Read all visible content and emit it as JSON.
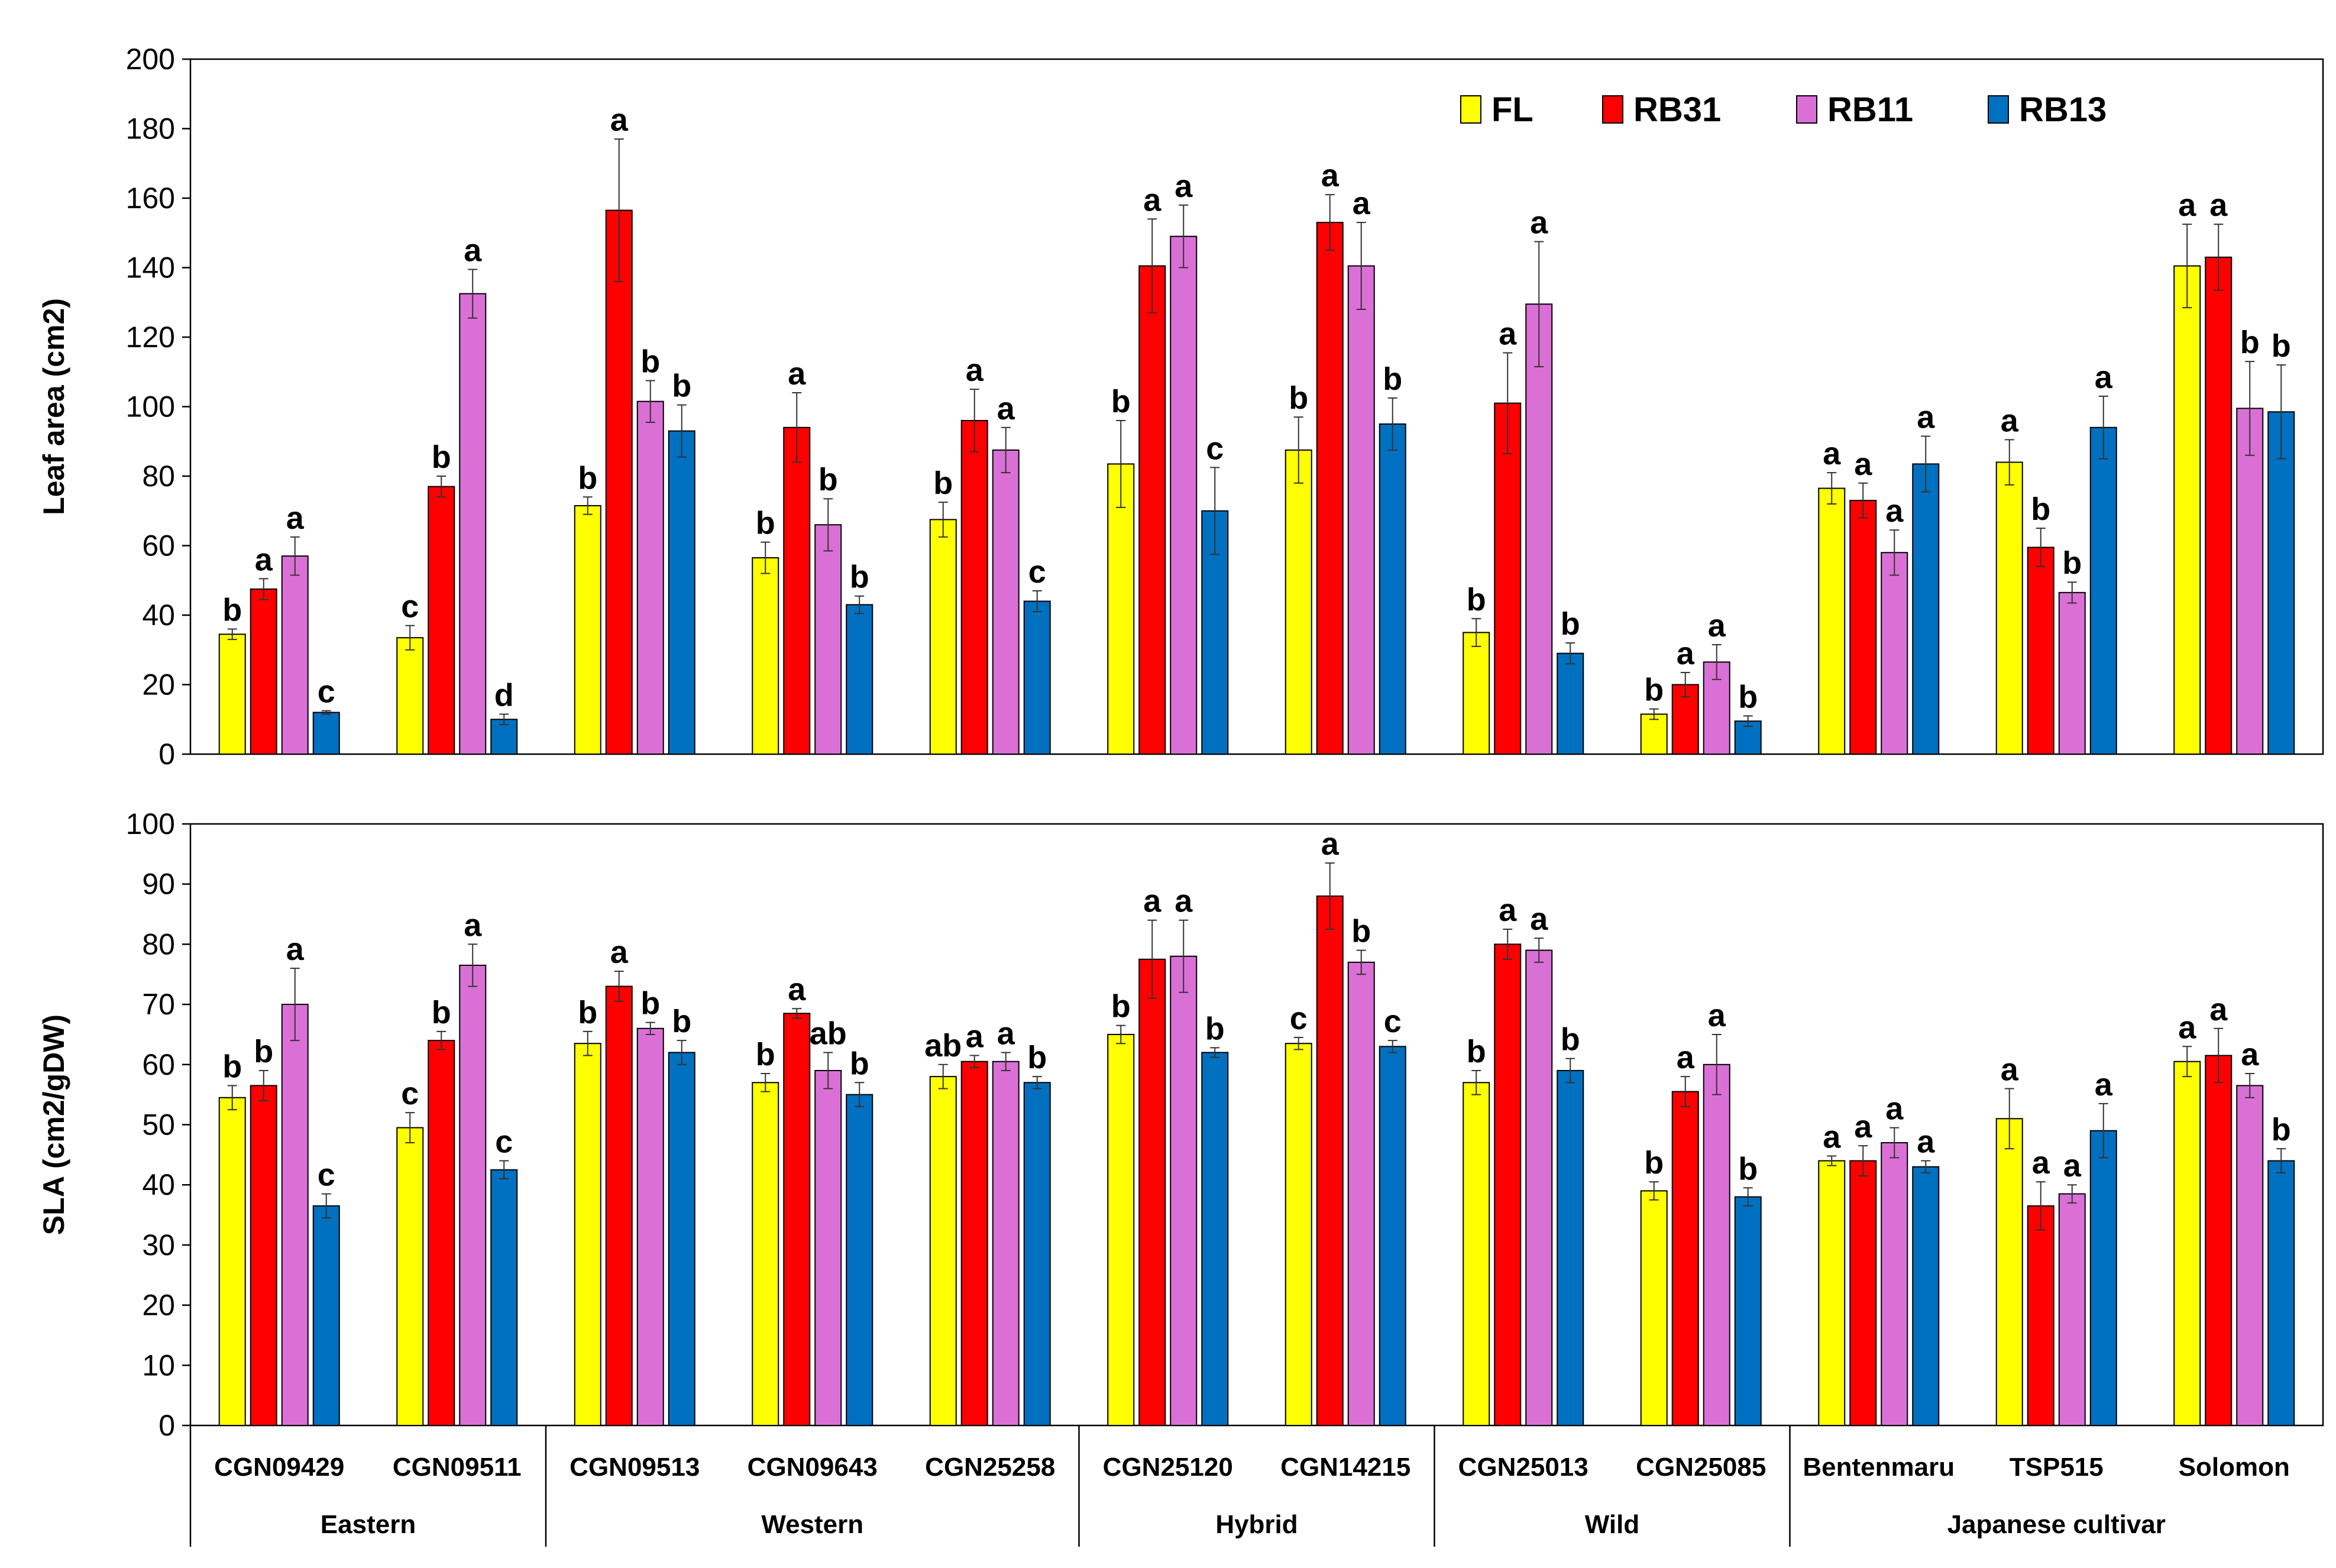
{
  "chart_data": [
    {
      "type": "bar",
      "ylabel": "Leaf area (cm2)",
      "ylim": [
        0,
        200
      ],
      "yticks": [
        0,
        20,
        40,
        60,
        80,
        100,
        120,
        140,
        160,
        180,
        200
      ],
      "legend": {
        "placement": "top-right",
        "entries": [
          {
            "name": "FL",
            "color": "#FFFF00"
          },
          {
            "name": "RB31",
            "color": "#FF0000"
          },
          {
            "name": "RB11",
            "color": "#DA70D6"
          },
          {
            "name": "RB13",
            "color": "#0070C0"
          }
        ]
      },
      "categories": [
        "CGN09429",
        "CGN09511",
        "CGN09513",
        "CGN09643",
        "CGN25258",
        "CGN25120",
        "CGN14215",
        "CGN25013",
        "CGN25085",
        "Bentenmaru",
        "TSP515",
        "Solomon"
      ],
      "series": [
        {
          "name": "FL",
          "color": "#FFFF00",
          "values": [
            34.5,
            33.5,
            71.5,
            56.5,
            67.5,
            83.5,
            87.5,
            35,
            11.5,
            76.5,
            84,
            140.5
          ],
          "errors": [
            1.5,
            3.5,
            2.5,
            4.5,
            5,
            12.5,
            9.5,
            4,
            1.5,
            4.5,
            6.5,
            12
          ],
          "letters": [
            "b",
            "c",
            "b",
            "b",
            "b",
            "b",
            "b",
            "b",
            "b",
            "a",
            "a",
            "a"
          ]
        },
        {
          "name": "RB31",
          "color": "#FF0000",
          "values": [
            47.5,
            77,
            156.5,
            94,
            96,
            140.5,
            153,
            101,
            20,
            73,
            59.5,
            143
          ],
          "errors": [
            3,
            3,
            20.5,
            10,
            9,
            13.5,
            8,
            14.5,
            3.5,
            5,
            5.5,
            9.5
          ],
          "letters": [
            "a",
            "b",
            "a",
            "a",
            "a",
            "a",
            "a",
            "a",
            "a",
            "a",
            "b",
            "a"
          ]
        },
        {
          "name": "RB11",
          "color": "#DA70D6",
          "values": [
            57,
            132.5,
            101.5,
            66,
            87.5,
            149,
            140.5,
            129.5,
            26.5,
            58,
            46.5,
            99.5
          ],
          "errors": [
            5.5,
            7,
            6,
            7.5,
            6.5,
            9,
            12.5,
            18,
            5,
            6.5,
            3,
            13.5
          ],
          "letters": [
            "a",
            "a",
            "b",
            "b",
            "a",
            "a",
            "a",
            "a",
            "a",
            "a",
            "b",
            "b"
          ]
        },
        {
          "name": "RB13",
          "color": "#0070C0",
          "values": [
            12,
            10,
            93,
            43,
            44,
            70,
            95,
            29,
            9.5,
            83.5,
            94,
            98.5
          ],
          "errors": [
            0.5,
            1.5,
            7.5,
            2.5,
            3,
            12.5,
            7.5,
            3,
            1.5,
            8,
            9,
            13.5
          ],
          "letters": [
            "c",
            "d",
            "b",
            "b",
            "c",
            "c",
            "b",
            "b",
            "b",
            "a",
            "a",
            "b"
          ]
        }
      ]
    },
    {
      "type": "bar",
      "ylabel": "SLA (cm2/gDW)",
      "ylim": [
        0,
        100
      ],
      "yticks": [
        0,
        10,
        20,
        30,
        40,
        50,
        60,
        70,
        80,
        90,
        100
      ],
      "categories": [
        "CGN09429",
        "CGN09511",
        "CGN09513",
        "CGN09643",
        "CGN25258",
        "CGN25120",
        "CGN14215",
        "CGN25013",
        "CGN25085",
        "Bentenmaru",
        "TSP515",
        "Solomon"
      ],
      "groups": [
        {
          "label": "Eastern",
          "count": 2
        },
        {
          "label": "Western",
          "count": 3
        },
        {
          "label": "Hybrid",
          "count": 2
        },
        {
          "label": "Wild",
          "count": 2
        },
        {
          "label": "Japanese cultivar",
          "count": 3
        }
      ],
      "series": [
        {
          "name": "FL",
          "color": "#FFFF00",
          "values": [
            54.5,
            49.5,
            63.5,
            57,
            58,
            65,
            63.5,
            57,
            39,
            44,
            51,
            60.5
          ],
          "errors": [
            2,
            2.5,
            2,
            1.5,
            2,
            1.5,
            1,
            2,
            1.5,
            0.8,
            5,
            2.5
          ],
          "letters": [
            "b",
            "c",
            "b",
            "b",
            "ab",
            "b",
            "c",
            "b",
            "b",
            "a",
            "a",
            "a"
          ]
        },
        {
          "name": "RB31",
          "color": "#FF0000",
          "values": [
            56.5,
            64,
            73,
            68.5,
            60.5,
            77.5,
            88,
            80,
            55.5,
            44,
            36.5,
            61.5
          ],
          "errors": [
            2.5,
            1.5,
            2.5,
            0.8,
            1,
            6.5,
            5.5,
            2.5,
            2.5,
            2.5,
            4,
            4.5
          ],
          "letters": [
            "b",
            "b",
            "a",
            "a",
            "a",
            "a",
            "a",
            "a",
            "a",
            "a",
            "a",
            "a"
          ]
        },
        {
          "name": "RB11",
          "color": "#DA70D6",
          "values": [
            70,
            76.5,
            66,
            59,
            60.5,
            78,
            77,
            79,
            60,
            47,
            38.5,
            56.5
          ],
          "errors": [
            6,
            3.5,
            1,
            3,
            1.5,
            6,
            2,
            2,
            5,
            2.5,
            1.5,
            2
          ],
          "letters": [
            "a",
            "a",
            "b",
            "ab",
            "a",
            "a",
            "b",
            "a",
            "a",
            "a",
            "a",
            "a"
          ]
        },
        {
          "name": "RB13",
          "color": "#0070C0",
          "values": [
            36.5,
            42.5,
            62,
            55,
            57,
            62,
            63,
            59,
            38,
            43,
            49,
            44
          ],
          "errors": [
            2,
            1.5,
            2,
            2,
            1,
            0.8,
            1,
            2,
            1.5,
            1,
            4.5,
            2
          ],
          "letters": [
            "c",
            "c",
            "b",
            "b",
            "b",
            "b",
            "c",
            "b",
            "b",
            "a",
            "a",
            "b"
          ]
        }
      ]
    }
  ]
}
